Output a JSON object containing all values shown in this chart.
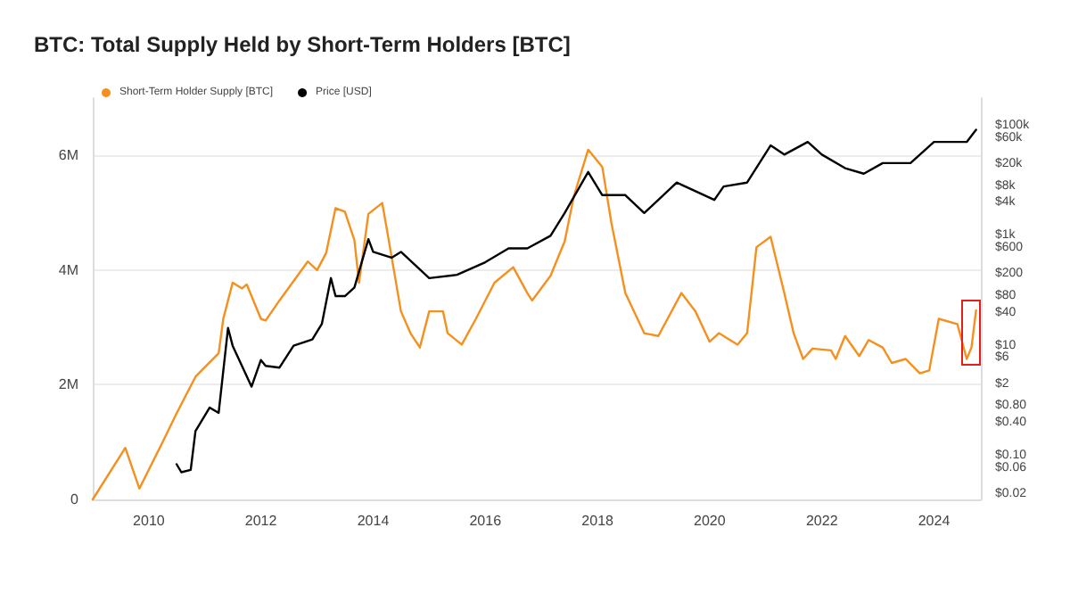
{
  "chart_data": {
    "type": "line",
    "title": "BTC: Total Supply Held by Short-Term Holders [BTC]",
    "xlim": [
      "2009-01",
      "2024-11"
    ],
    "xticks": [
      "2010",
      "2012",
      "2014",
      "2016",
      "2018",
      "2020",
      "2022",
      "2024"
    ],
    "ylim": [
      0,
      7000000
    ],
    "yticks": [
      {
        "value": 0,
        "label": "0"
      },
      {
        "value": 2000000,
        "label": "2M"
      },
      {
        "value": 4000000,
        "label": "4M"
      },
      {
        "value": 6000000,
        "label": "6M"
      }
    ],
    "y2lim": [
      0.016,
      320000
    ],
    "log": "y2",
    "y2ticks": [
      {
        "value": 100000,
        "label": "$100k"
      },
      {
        "value": 60000,
        "label": "$60k"
      },
      {
        "value": 20000,
        "label": "$20k"
      },
      {
        "value": 8000,
        "label": "$8k"
      },
      {
        "value": 4000,
        "label": "$4k"
      },
      {
        "value": 1000,
        "label": "$1k"
      },
      {
        "value": 600,
        "label": "$600"
      },
      {
        "value": 200,
        "label": "$200"
      },
      {
        "value": 80,
        "label": "$80"
      },
      {
        "value": 40,
        "label": "$40"
      },
      {
        "value": 10,
        "label": "$10"
      },
      {
        "value": 6,
        "label": "$6"
      },
      {
        "value": 2,
        "label": "$2"
      },
      {
        "value": 0.8,
        "label": "$0.80"
      },
      {
        "value": 0.4,
        "label": "$0.40"
      },
      {
        "value": 0.1,
        "label": "$0.10"
      },
      {
        "value": 0.06,
        "label": "$0.06"
      },
      {
        "value": 0.02,
        "label": "$0.02"
      }
    ],
    "grid": "y",
    "legend": "top left",
    "marker": "none",
    "line_style": "solid",
    "series": [
      {
        "name": "Short-Term Holder Supply [BTC]",
        "color": "#f5901e",
        "x": [
          "2009-01",
          "2009-08",
          "2009-11",
          "2010-04",
          "2010-07",
          "2010-11",
          "2011-04",
          "2011-05",
          "2011-07",
          "2011-09",
          "2011-10",
          "2012-01",
          "2012-02",
          "2012-05",
          "2012-11",
          "2013-01",
          "2013-03",
          "2013-05",
          "2013-07",
          "2013-09",
          "2013-10",
          "2013-12",
          "2014-03",
          "2014-04",
          "2014-07",
          "2014-09",
          "2014-11",
          "2015-01",
          "2015-04",
          "2015-05",
          "2015-08",
          "2015-11",
          "2016-03",
          "2016-07",
          "2016-10",
          "2016-11",
          "2017-03",
          "2017-06",
          "2017-08",
          "2017-11",
          "2018-02",
          "2018-04",
          "2018-07",
          "2018-11",
          "2019-02",
          "2019-07",
          "2019-10",
          "2020-01",
          "2020-03",
          "2020-07",
          "2020-09",
          "2020-11",
          "2021-02",
          "2021-05",
          "2021-07",
          "2021-09",
          "2021-11",
          "2022-03",
          "2022-04",
          "2022-06",
          "2022-09",
          "2022-11",
          "2023-02",
          "2023-04",
          "2023-07",
          "2023-10",
          "2023-12",
          "2024-02",
          "2024-06",
          "2024-08",
          "2024-09",
          "2024-10"
        ],
        "values": [
          0,
          900000,
          190000,
          1000000,
          1500000,
          2140000,
          2550000,
          3150000,
          3780000,
          3680000,
          3750000,
          3150000,
          3120000,
          3470000,
          4150000,
          4000000,
          4300000,
          5080000,
          5020000,
          4520000,
          3780000,
          4980000,
          5170000,
          4700000,
          3280000,
          2900000,
          2650000,
          3280000,
          3280000,
          2900000,
          2700000,
          3150000,
          3780000,
          4050000,
          3600000,
          3470000,
          3900000,
          4500000,
          5300000,
          6100000,
          5800000,
          4830000,
          3600000,
          2900000,
          2850000,
          3600000,
          3280000,
          2750000,
          2900000,
          2700000,
          2900000,
          4400000,
          4580000,
          3600000,
          2900000,
          2450000,
          2630000,
          2600000,
          2450000,
          2850000,
          2500000,
          2780000,
          2650000,
          2380000,
          2450000,
          2200000,
          2250000,
          3150000,
          3060000,
          2450000,
          2650000,
          3300000
        ]
      },
      {
        "name": "Price [USD]",
        "color": "#000000",
        "axis": "y2",
        "x": [
          "2010-07",
          "2010-08",
          "2010-10",
          "2010-11",
          "2011-02",
          "2011-04",
          "2011-06",
          "2011-07",
          "2011-11",
          "2012-01",
          "2012-02",
          "2012-05",
          "2012-08",
          "2012-12",
          "2013-02",
          "2013-04",
          "2013-05",
          "2013-07",
          "2013-09",
          "2013-12",
          "2014-01",
          "2014-05",
          "2014-07",
          "2015-01",
          "2015-07",
          "2016-01",
          "2016-06",
          "2016-10",
          "2017-03",
          "2017-06",
          "2017-11",
          "2018-02",
          "2018-07",
          "2018-11",
          "2019-02",
          "2019-06",
          "2020-02",
          "2020-04",
          "2020-09",
          "2021-02",
          "2021-05",
          "2021-10",
          "2022-01",
          "2022-06",
          "2022-10",
          "2023-02",
          "2023-08",
          "2024-01",
          "2024-04",
          "2024-08",
          "2024-10"
        ],
        "values": [
          0.07,
          0.05,
          0.055,
          0.28,
          0.75,
          0.6,
          21,
          10,
          1.8,
          5.5,
          4.3,
          4,
          10,
          13,
          25,
          170,
          80,
          80,
          115,
          870,
          510,
          400,
          510,
          170,
          195,
          330,
          590,
          590,
          1000,
          2600,
          14500,
          5500,
          5500,
          2600,
          4500,
          9300,
          4500,
          7900,
          9300,
          44000,
          30000,
          51000,
          30000,
          17000,
          13500,
          21000,
          21000,
          51000,
          51000,
          51000,
          85000
        ]
      }
    ]
  }
}
